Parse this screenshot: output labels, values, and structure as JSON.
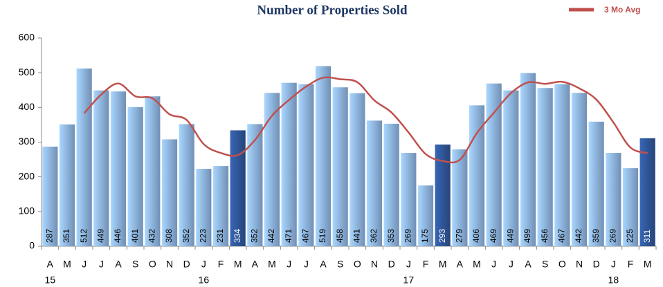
{
  "chart_data": {
    "type": "bar",
    "title": "Number of Properties Sold",
    "categories": [
      "A",
      "M",
      "J",
      "J",
      "A",
      "S",
      "O",
      "N",
      "D",
      "J",
      "F",
      "M",
      "A",
      "M",
      "J",
      "J",
      "A",
      "S",
      "O",
      "N",
      "D",
      "J",
      "F",
      "M",
      "A",
      "M",
      "J",
      "J",
      "A",
      "S",
      "O",
      "N",
      "D",
      "J",
      "F",
      "M"
    ],
    "years": [
      "15",
      null,
      null,
      null,
      null,
      null,
      null,
      null,
      null,
      "16",
      null,
      null,
      null,
      null,
      null,
      null,
      null,
      null,
      null,
      null,
      null,
      "17",
      null,
      null,
      null,
      null,
      null,
      null,
      null,
      null,
      null,
      null,
      null,
      "18",
      null,
      null
    ],
    "values": [
      287,
      351,
      512,
      449,
      446,
      401,
      432,
      308,
      352,
      223,
      231,
      334,
      352,
      442,
      471,
      467,
      519,
      458,
      441,
      362,
      353,
      269,
      175,
      293,
      279,
      406,
      469,
      449,
      499,
      456,
      467,
      442,
      359,
      269,
      225,
      311
    ],
    "colors": [
      "#8db3e2",
      "#8db3e2",
      "#8db3e2",
      "#8db3e2",
      "#8db3e2",
      "#8db3e2",
      "#8db3e2",
      "#8db3e2",
      "#8db3e2",
      "#8db3e2",
      "#8db3e2",
      "#2f5597",
      "#8db3e2",
      "#8db3e2",
      "#8db3e2",
      "#8db3e2",
      "#8db3e2",
      "#8db3e2",
      "#8db3e2",
      "#8db3e2",
      "#8db3e2",
      "#8db3e2",
      "#8db3e2",
      "#2f5597",
      "#8db3e2",
      "#8db3e2",
      "#8db3e2",
      "#8db3e2",
      "#8db3e2",
      "#8db3e2",
      "#8db3e2",
      "#8db3e2",
      "#8db3e2",
      "#8db3e2",
      "#8db3e2",
      "#2f5597"
    ],
    "line": {
      "name": "3 Mo Avg",
      "color": "#c0504d",
      "values": [
        null,
        null,
        383.3,
        437.3,
        469,
        432,
        426.3,
        380.3,
        364,
        294.3,
        268.7,
        262.7,
        305.7,
        376,
        421.7,
        460,
        485.7,
        481.3,
        472.7,
        420.3,
        385.3,
        328,
        265.7,
        245.7,
        249,
        326,
        384.7,
        441.3,
        472.3,
        468,
        474,
        455,
        422.7,
        356.7,
        284.3,
        268.3
      ]
    },
    "ylim": [
      0,
      600
    ],
    "yticks": [
      0,
      100,
      200,
      300,
      400,
      500,
      600
    ],
    "legend": "top-right"
  }
}
